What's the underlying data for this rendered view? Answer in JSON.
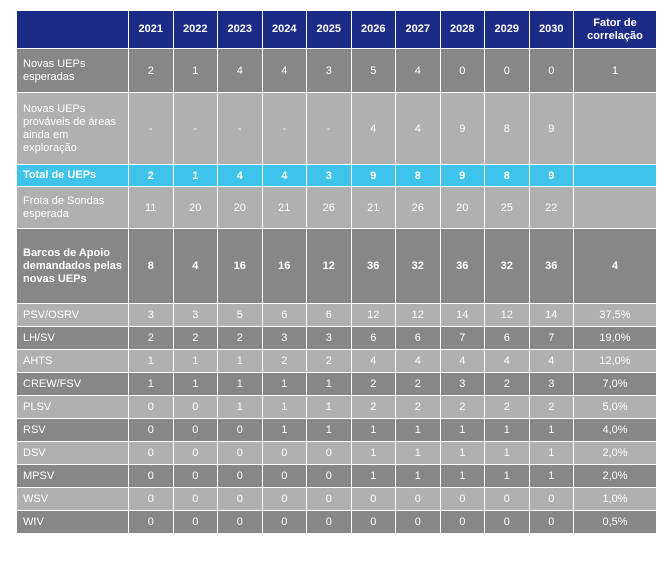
{
  "table": {
    "columns": [
      null,
      "2021",
      "2022",
      "2023",
      "2024",
      "2025",
      "2026",
      "2027",
      "2028",
      "2029",
      "2030",
      "Fator de correlação"
    ],
    "rows": [
      {
        "label": "Novas UEPs esperadas",
        "cells": [
          "2",
          "1",
          "4",
          "4",
          "3",
          "5",
          "4",
          "0",
          "0",
          "0",
          "1"
        ]
      },
      {
        "label": "Novas UEPs prováveis de áreas ainda em exploração",
        "cells": [
          "-",
          "-",
          "-",
          "-",
          "-",
          "4",
          "4",
          "9",
          "8",
          "9",
          null
        ]
      },
      {
        "label": "Total de UEPs",
        "cells": [
          "2",
          "1",
          "4",
          "4",
          "3",
          "9",
          "8",
          "9",
          "8",
          "9",
          null
        ]
      },
      {
        "label": "Frota de Sondas esperada",
        "cells": [
          "11",
          "20",
          "20",
          "21",
          "26",
          "21",
          "26",
          "20",
          "25",
          "22",
          null
        ]
      },
      {
        "label": "Barcos de Apoio demandados pelas novas UEPs",
        "cells": [
          "8",
          "4",
          "16",
          "16",
          "12",
          "36",
          "32",
          "36",
          "32",
          "36",
          "4"
        ]
      },
      {
        "label": "PSV/OSRV",
        "cells": [
          "3",
          "3",
          "5",
          "6",
          "6",
          "12",
          "12",
          "14",
          "12",
          "14",
          "37,5%"
        ]
      },
      {
        "label": "LH/SV",
        "cells": [
          "2",
          "2",
          "2",
          "3",
          "3",
          "6",
          "6",
          "7",
          "6",
          "7",
          "19,0%"
        ]
      },
      {
        "label": "AHTS",
        "cells": [
          "1",
          "1",
          "1",
          "2",
          "2",
          "4",
          "4",
          "4",
          "4",
          "4",
          "12,0%"
        ]
      },
      {
        "label": "CREW/FSV",
        "cells": [
          "1",
          "1",
          "1",
          "1",
          "1",
          "2",
          "2",
          "3",
          "2",
          "3",
          "7,0%"
        ]
      },
      {
        "label": "PLSV",
        "cells": [
          "0",
          "0",
          "1",
          "1",
          "1",
          "2",
          "2",
          "2",
          "2",
          "2",
          "5,0%"
        ]
      },
      {
        "label": "RSV",
        "cells": [
          "0",
          "0",
          "0",
          "1",
          "1",
          "1",
          "1",
          "1",
          "1",
          "1",
          "4,0%"
        ]
      },
      {
        "label": "DSV",
        "cells": [
          "0",
          "0",
          "0",
          "0",
          "0",
          "1",
          "1",
          "1",
          "1",
          "1",
          "2,0%"
        ]
      },
      {
        "label": "MPSV",
        "cells": [
          "0",
          "0",
          "0",
          "0",
          "0",
          "1",
          "1",
          "1",
          "1",
          "1",
          "2,0%"
        ]
      },
      {
        "label": "WSV",
        "cells": [
          "0",
          "0",
          "0",
          "0",
          "0",
          "0",
          "0",
          "0",
          "0",
          "0",
          "1,0%"
        ]
      },
      {
        "label": "WIV",
        "cells": [
          "0",
          "0",
          "0",
          "0",
          "0",
          "0",
          "0",
          "0",
          "0",
          "0",
          "0,5%"
        ]
      }
    ]
  }
}
